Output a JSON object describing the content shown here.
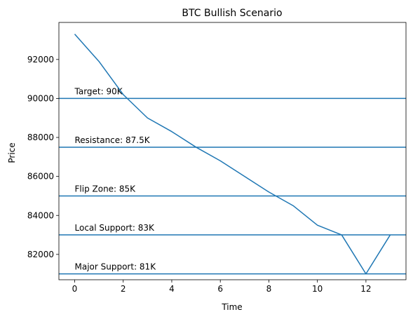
{
  "chart_data": {
    "type": "line",
    "title": "BTC Bullish Scenario",
    "xlabel": "Time",
    "ylabel": "Price",
    "xlim": [
      -0.65,
      13.65
    ],
    "ylim": [
      80700,
      93900
    ],
    "x_ticks": [
      0,
      2,
      4,
      6,
      8,
      10,
      12
    ],
    "y_ticks": [
      82000,
      84000,
      86000,
      88000,
      90000,
      92000
    ],
    "grid": false,
    "series": [
      {
        "x": [
          0,
          1,
          2,
          3,
          4,
          5,
          6,
          7,
          8,
          9,
          10,
          11,
          12,
          13
        ],
        "values": [
          93300,
          91900,
          90200,
          89000,
          88300,
          87500,
          86800,
          86000,
          85200,
          84500,
          83500,
          83000,
          81000,
          83000
        ],
        "color": "#1f77b4"
      }
    ],
    "levels": [
      {
        "value": 90000,
        "label": "Target: 90K"
      },
      {
        "value": 87500,
        "label": "Resistance: 87.5K"
      },
      {
        "value": 85000,
        "label": "Flip Zone: 85K"
      },
      {
        "value": 83000,
        "label": "Local Support: 83K"
      },
      {
        "value": 81000,
        "label": "Major Support: 81K"
      }
    ],
    "level_color": "#1f77b4"
  }
}
